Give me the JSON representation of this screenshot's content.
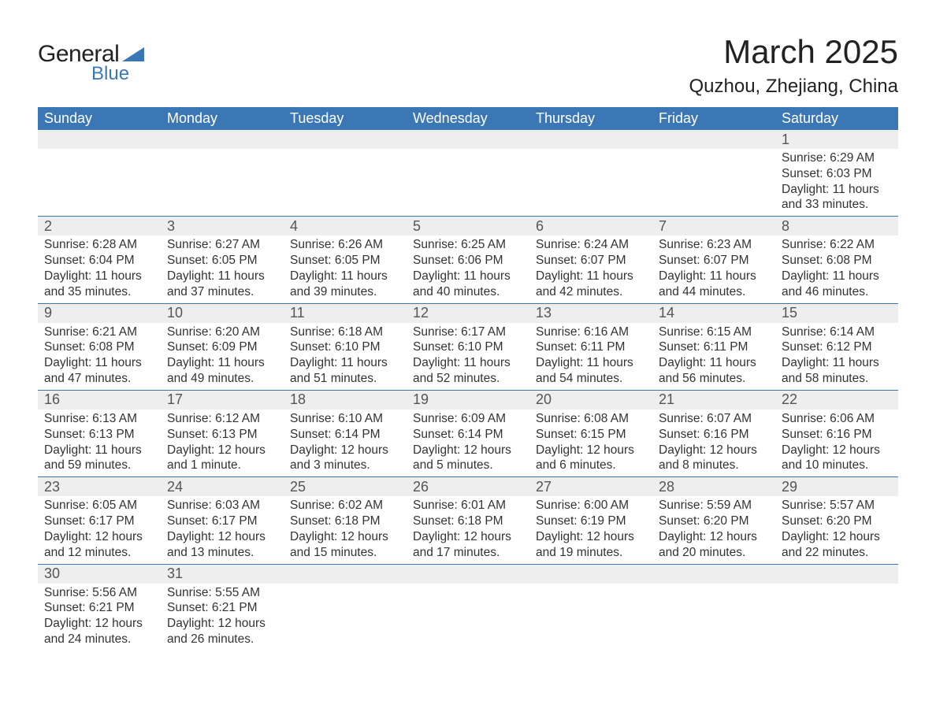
{
  "logo": {
    "line1": "General",
    "line2": "Blue",
    "shape_color": "#3c77b5"
  },
  "title": "March 2025",
  "location": "Quzhou, Zhejiang, China",
  "colors": {
    "header_bg": "#3c77b5",
    "header_text": "#ffffff",
    "date_bar_bg": "#eeeeee",
    "row_border": "#3c77b5",
    "body_text": "#333333"
  },
  "day_names": [
    "Sunday",
    "Monday",
    "Tuesday",
    "Wednesday",
    "Thursday",
    "Friday",
    "Saturday"
  ],
  "weeks": [
    [
      {
        "date": "",
        "sunrise": "",
        "sunset": "",
        "daylight": ""
      },
      {
        "date": "",
        "sunrise": "",
        "sunset": "",
        "daylight": ""
      },
      {
        "date": "",
        "sunrise": "",
        "sunset": "",
        "daylight": ""
      },
      {
        "date": "",
        "sunrise": "",
        "sunset": "",
        "daylight": ""
      },
      {
        "date": "",
        "sunrise": "",
        "sunset": "",
        "daylight": ""
      },
      {
        "date": "",
        "sunrise": "",
        "sunset": "",
        "daylight": ""
      },
      {
        "date": "1",
        "sunrise": "Sunrise: 6:29 AM",
        "sunset": "Sunset: 6:03 PM",
        "daylight": "Daylight: 11 hours and 33 minutes."
      }
    ],
    [
      {
        "date": "2",
        "sunrise": "Sunrise: 6:28 AM",
        "sunset": "Sunset: 6:04 PM",
        "daylight": "Daylight: 11 hours and 35 minutes."
      },
      {
        "date": "3",
        "sunrise": "Sunrise: 6:27 AM",
        "sunset": "Sunset: 6:05 PM",
        "daylight": "Daylight: 11 hours and 37 minutes."
      },
      {
        "date": "4",
        "sunrise": "Sunrise: 6:26 AM",
        "sunset": "Sunset: 6:05 PM",
        "daylight": "Daylight: 11 hours and 39 minutes."
      },
      {
        "date": "5",
        "sunrise": "Sunrise: 6:25 AM",
        "sunset": "Sunset: 6:06 PM",
        "daylight": "Daylight: 11 hours and 40 minutes."
      },
      {
        "date": "6",
        "sunrise": "Sunrise: 6:24 AM",
        "sunset": "Sunset: 6:07 PM",
        "daylight": "Daylight: 11 hours and 42 minutes."
      },
      {
        "date": "7",
        "sunrise": "Sunrise: 6:23 AM",
        "sunset": "Sunset: 6:07 PM",
        "daylight": "Daylight: 11 hours and 44 minutes."
      },
      {
        "date": "8",
        "sunrise": "Sunrise: 6:22 AM",
        "sunset": "Sunset: 6:08 PM",
        "daylight": "Daylight: 11 hours and 46 minutes."
      }
    ],
    [
      {
        "date": "9",
        "sunrise": "Sunrise: 6:21 AM",
        "sunset": "Sunset: 6:08 PM",
        "daylight": "Daylight: 11 hours and 47 minutes."
      },
      {
        "date": "10",
        "sunrise": "Sunrise: 6:20 AM",
        "sunset": "Sunset: 6:09 PM",
        "daylight": "Daylight: 11 hours and 49 minutes."
      },
      {
        "date": "11",
        "sunrise": "Sunrise: 6:18 AM",
        "sunset": "Sunset: 6:10 PM",
        "daylight": "Daylight: 11 hours and 51 minutes."
      },
      {
        "date": "12",
        "sunrise": "Sunrise: 6:17 AM",
        "sunset": "Sunset: 6:10 PM",
        "daylight": "Daylight: 11 hours and 52 minutes."
      },
      {
        "date": "13",
        "sunrise": "Sunrise: 6:16 AM",
        "sunset": "Sunset: 6:11 PM",
        "daylight": "Daylight: 11 hours and 54 minutes."
      },
      {
        "date": "14",
        "sunrise": "Sunrise: 6:15 AM",
        "sunset": "Sunset: 6:11 PM",
        "daylight": "Daylight: 11 hours and 56 minutes."
      },
      {
        "date": "15",
        "sunrise": "Sunrise: 6:14 AM",
        "sunset": "Sunset: 6:12 PM",
        "daylight": "Daylight: 11 hours and 58 minutes."
      }
    ],
    [
      {
        "date": "16",
        "sunrise": "Sunrise: 6:13 AM",
        "sunset": "Sunset: 6:13 PM",
        "daylight": "Daylight: 11 hours and 59 minutes."
      },
      {
        "date": "17",
        "sunrise": "Sunrise: 6:12 AM",
        "sunset": "Sunset: 6:13 PM",
        "daylight": "Daylight: 12 hours and 1 minute."
      },
      {
        "date": "18",
        "sunrise": "Sunrise: 6:10 AM",
        "sunset": "Sunset: 6:14 PM",
        "daylight": "Daylight: 12 hours and 3 minutes."
      },
      {
        "date": "19",
        "sunrise": "Sunrise: 6:09 AM",
        "sunset": "Sunset: 6:14 PM",
        "daylight": "Daylight: 12 hours and 5 minutes."
      },
      {
        "date": "20",
        "sunrise": "Sunrise: 6:08 AM",
        "sunset": "Sunset: 6:15 PM",
        "daylight": "Daylight: 12 hours and 6 minutes."
      },
      {
        "date": "21",
        "sunrise": "Sunrise: 6:07 AM",
        "sunset": "Sunset: 6:16 PM",
        "daylight": "Daylight: 12 hours and 8 minutes."
      },
      {
        "date": "22",
        "sunrise": "Sunrise: 6:06 AM",
        "sunset": "Sunset: 6:16 PM",
        "daylight": "Daylight: 12 hours and 10 minutes."
      }
    ],
    [
      {
        "date": "23",
        "sunrise": "Sunrise: 6:05 AM",
        "sunset": "Sunset: 6:17 PM",
        "daylight": "Daylight: 12 hours and 12 minutes."
      },
      {
        "date": "24",
        "sunrise": "Sunrise: 6:03 AM",
        "sunset": "Sunset: 6:17 PM",
        "daylight": "Daylight: 12 hours and 13 minutes."
      },
      {
        "date": "25",
        "sunrise": "Sunrise: 6:02 AM",
        "sunset": "Sunset: 6:18 PM",
        "daylight": "Daylight: 12 hours and 15 minutes."
      },
      {
        "date": "26",
        "sunrise": "Sunrise: 6:01 AM",
        "sunset": "Sunset: 6:18 PM",
        "daylight": "Daylight: 12 hours and 17 minutes."
      },
      {
        "date": "27",
        "sunrise": "Sunrise: 6:00 AM",
        "sunset": "Sunset: 6:19 PM",
        "daylight": "Daylight: 12 hours and 19 minutes."
      },
      {
        "date": "28",
        "sunrise": "Sunrise: 5:59 AM",
        "sunset": "Sunset: 6:20 PM",
        "daylight": "Daylight: 12 hours and 20 minutes."
      },
      {
        "date": "29",
        "sunrise": "Sunrise: 5:57 AM",
        "sunset": "Sunset: 6:20 PM",
        "daylight": "Daylight: 12 hours and 22 minutes."
      }
    ],
    [
      {
        "date": "30",
        "sunrise": "Sunrise: 5:56 AM",
        "sunset": "Sunset: 6:21 PM",
        "daylight": "Daylight: 12 hours and 24 minutes."
      },
      {
        "date": "31",
        "sunrise": "Sunrise: 5:55 AM",
        "sunset": "Sunset: 6:21 PM",
        "daylight": "Daylight: 12 hours and 26 minutes."
      },
      {
        "date": "",
        "sunrise": "",
        "sunset": "",
        "daylight": ""
      },
      {
        "date": "",
        "sunrise": "",
        "sunset": "",
        "daylight": ""
      },
      {
        "date": "",
        "sunrise": "",
        "sunset": "",
        "daylight": ""
      },
      {
        "date": "",
        "sunrise": "",
        "sunset": "",
        "daylight": ""
      },
      {
        "date": "",
        "sunrise": "",
        "sunset": "",
        "daylight": ""
      }
    ]
  ]
}
